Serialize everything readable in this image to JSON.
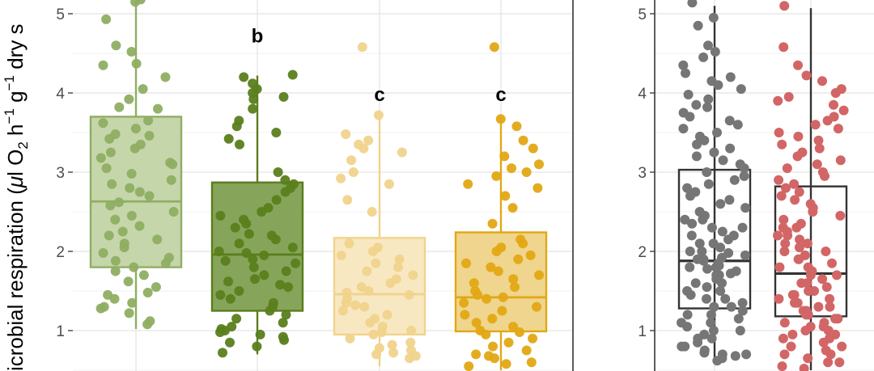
{
  "chart_data": [
    {
      "type": "box",
      "title": "",
      "ylabel": {
        "prefix": "icrobial respiration (",
        "mu": "μ",
        "unit_l_o": "l O",
        "sub_2": "2",
        "h": " h",
        "sup_h": "−1",
        "g": " g",
        "sup_g": "−1",
        "tail": " dry s"
      },
      "ylim": [
        0.5,
        5.15
      ],
      "yticks": [
        1,
        2,
        3,
        4,
        5
      ],
      "ytick_labels": [
        "1",
        "2",
        "3",
        "4",
        "5"
      ],
      "grid": true,
      "series": [
        {
          "color": "#8fae62",
          "fill": "#c6d6ab",
          "q1": 1.8,
          "median": 2.63,
          "q3": 3.7,
          "whisker_low": 1.02,
          "whisker_high": 5.15,
          "letter": "",
          "points": [
            5.15,
            5.18,
            4.93,
            4.6,
            4.52,
            4.37,
            4.35,
            4.2,
            4.05,
            3.92,
            3.82,
            3.8,
            3.65,
            3.62,
            3.55,
            3.48,
            3.46,
            3.42,
            3.35,
            3.3,
            3.25,
            3.18,
            3.12,
            3.1,
            3.05,
            2.98,
            2.9,
            2.85,
            2.8,
            2.75,
            2.7,
            2.62,
            2.58,
            2.5,
            2.45,
            2.4,
            2.32,
            2.25,
            2.2,
            2.15,
            2.1,
            2.05,
            1.98,
            1.92,
            1.88,
            1.85,
            1.8,
            1.75,
            1.7,
            1.62,
            1.55,
            1.48,
            1.45,
            1.4,
            1.35,
            1.3,
            1.28,
            1.22,
            1.12,
            1.08
          ]
        },
        {
          "color": "#5a7e1c",
          "fill": "#86a55a",
          "q1": 1.25,
          "median": 1.96,
          "q3": 2.87,
          "whisker_low": 0.7,
          "whisker_high": 4.22,
          "letter": "b",
          "points": [
            4.23,
            4.2,
            4.12,
            4.05,
            4.0,
            3.95,
            3.92,
            3.8,
            3.65,
            3.58,
            3.5,
            3.42,
            3.35,
            3.0,
            2.9,
            2.85,
            2.8,
            2.75,
            2.65,
            2.55,
            2.5,
            2.45,
            2.4,
            2.35,
            2.3,
            2.22,
            2.2,
            2.15,
            2.1,
            2.05,
            2.0,
            1.98,
            1.95,
            1.9,
            1.88,
            1.85,
            1.8,
            1.75,
            1.7,
            1.65,
            1.62,
            1.58,
            1.55,
            1.5,
            1.45,
            1.4,
            1.35,
            1.3,
            1.25,
            1.2,
            1.15,
            1.1,
            1.05,
            1.02,
            1.0,
            0.98,
            0.95,
            0.92,
            0.88,
            0.85,
            0.8,
            0.72
          ]
        },
        {
          "color": "#f0d38c",
          "fill": "#f8e8c2",
          "q1": 0.95,
          "median": 1.46,
          "q3": 2.17,
          "whisker_low": 0.55,
          "whisker_high": 3.72,
          "letter": "c",
          "points": [
            4.58,
            3.72,
            3.48,
            3.4,
            3.35,
            3.3,
            3.25,
            3.15,
            3.0,
            2.92,
            2.85,
            2.65,
            2.5,
            2.1,
            2.05,
            2.0,
            1.95,
            1.9,
            1.85,
            1.8,
            1.75,
            1.7,
            1.65,
            1.6,
            1.55,
            1.5,
            1.48,
            1.45,
            1.4,
            1.35,
            1.32,
            1.3,
            1.25,
            1.2,
            1.15,
            1.1,
            1.05,
            1.0,
            0.98,
            0.95,
            0.9,
            0.85,
            0.82,
            0.78,
            0.75,
            0.72,
            0.7,
            0.68,
            0.65
          ]
        },
        {
          "color": "#e1a814",
          "fill": "#f0d58e",
          "q1": 0.99,
          "median": 1.42,
          "q3": 2.24,
          "whisker_low": 0.5,
          "whisker_high": 3.67,
          "letter": "c",
          "points": [
            4.58,
            3.67,
            3.58,
            3.4,
            3.3,
            3.2,
            3.1,
            3.05,
            3.0,
            2.95,
            2.85,
            2.8,
            2.7,
            2.55,
            2.35,
            2.15,
            2.1,
            2.05,
            2.0,
            1.95,
            1.9,
            1.85,
            1.8,
            1.75,
            1.7,
            1.65,
            1.6,
            1.55,
            1.5,
            1.45,
            1.42,
            1.4,
            1.35,
            1.3,
            1.25,
            1.2,
            1.15,
            1.1,
            1.05,
            1.0,
            0.98,
            0.95,
            0.9,
            0.85,
            0.8,
            0.75,
            0.7,
            0.68,
            0.65,
            0.6,
            0.58,
            0.55
          ]
        }
      ],
      "letter_positions": [
        0,
        4.72,
        3.98,
        3.98
      ]
    },
    {
      "type": "box",
      "title": "",
      "ylim": [
        0.5,
        5.15
      ],
      "yticks": [
        1,
        2,
        3,
        4,
        5
      ],
      "ytick_labels": [
        "1",
        "2",
        "3",
        "4",
        "5"
      ],
      "grid": true,
      "series": [
        {
          "color": "#333333",
          "fill": "none",
          "point_color": "#767676",
          "q1": 1.28,
          "median": 1.88,
          "q3": 3.03,
          "whisker_low": 0.6,
          "whisker_high": 5.1,
          "points": [
            5.14,
            4.95,
            4.85,
            4.6,
            4.52,
            4.45,
            4.35,
            4.25,
            4.2,
            4.15,
            4.1,
            4.05,
            3.98,
            3.92,
            3.85,
            3.82,
            3.75,
            3.7,
            3.65,
            3.6,
            3.55,
            3.5,
            3.45,
            3.4,
            3.35,
            3.3,
            3.25,
            3.2,
            3.15,
            3.1,
            3.05,
            3.0,
            2.95,
            2.9,
            2.85,
            2.8,
            2.75,
            2.7,
            2.65,
            2.6,
            2.55,
            2.5,
            2.45,
            2.4,
            2.35,
            2.3,
            2.25,
            2.2,
            2.15,
            2.1,
            2.05,
            2.0,
            1.98,
            1.95,
            1.92,
            1.9,
            1.88,
            1.85,
            1.82,
            1.8,
            1.78,
            1.75,
            1.72,
            1.7,
            1.65,
            1.6,
            1.55,
            1.5,
            1.45,
            1.4,
            1.35,
            1.3,
            1.25,
            1.2,
            1.15,
            1.1,
            1.05,
            1.0,
            0.95,
            0.9,
            0.85,
            0.8,
            0.75,
            0.72,
            0.7,
            0.68,
            0.65,
            0.62,
            2.4,
            2.3,
            2.2,
            2.1,
            2.0,
            1.9,
            1.8,
            1.7,
            1.6,
            1.5,
            1.4,
            1.3,
            1.2,
            1.1,
            1.0,
            0.9,
            0.8,
            0.7
          ]
        },
        {
          "color": "#333333",
          "fill": "none",
          "point_color": "#d26666",
          "q1": 1.18,
          "median": 1.72,
          "q3": 2.82,
          "whisker_low": 0.5,
          "whisker_high": 5.07,
          "points": [
            5.1,
            4.58,
            4.35,
            4.22,
            4.15,
            4.05,
            4.0,
            3.95,
            3.9,
            3.85,
            3.78,
            3.7,
            3.65,
            3.6,
            3.55,
            3.5,
            3.45,
            3.4,
            3.35,
            3.3,
            3.25,
            3.2,
            3.15,
            3.1,
            3.05,
            3.0,
            2.95,
            2.9,
            2.85,
            2.8,
            2.75,
            2.7,
            2.65,
            2.6,
            2.55,
            2.5,
            2.45,
            2.4,
            2.35,
            2.3,
            2.25,
            2.2,
            2.15,
            2.1,
            2.05,
            2.0,
            1.95,
            1.9,
            1.85,
            1.8,
            1.75,
            1.7,
            1.65,
            1.6,
            1.55,
            1.5,
            1.45,
            1.4,
            1.35,
            1.3,
            1.25,
            1.2,
            1.15,
            1.1,
            1.05,
            1.0,
            0.95,
            0.9,
            0.85,
            0.8,
            0.75,
            0.7,
            0.65,
            0.6,
            0.55,
            0.52,
            2.3,
            2.2,
            2.1,
            2.0,
            1.9,
            1.8,
            1.7,
            1.6,
            1.5,
            1.4,
            1.3,
            1.2,
            1.1,
            1.0,
            0.9,
            0.8,
            0.7,
            0.6,
            1.45,
            1.35,
            1.25,
            1.15,
            1.05,
            0.95
          ]
        }
      ]
    }
  ]
}
